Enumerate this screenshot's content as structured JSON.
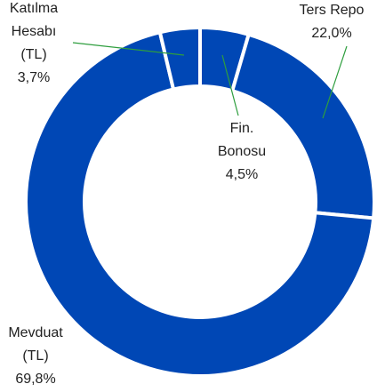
{
  "chart_data": {
    "type": "donut",
    "categories": [
      "Fin. Bonosu",
      "Ters Repo",
      "Mevduat (TL)",
      "Katılma Hesabı (TL)"
    ],
    "values": [
      4.5,
      22.0,
      69.8,
      3.7
    ],
    "value_labels": [
      "4,5%",
      "22,0%",
      "69,8%",
      "3,7%"
    ],
    "color": "#0047b5"
  }
}
